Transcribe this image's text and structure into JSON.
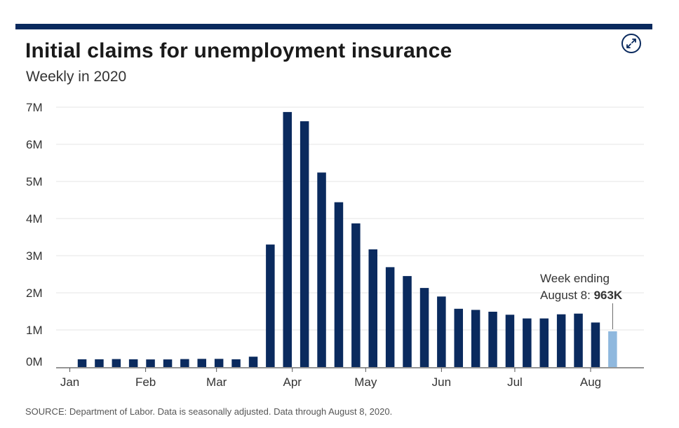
{
  "header": {
    "title": "Initial claims for unemployment insurance",
    "subtitle": "Weekly in 2020",
    "expand_icon": "expand-arrows-icon"
  },
  "colors": {
    "bar": "#0a2a5e",
    "highlight_bar": "#8fb8de",
    "gridline": "#e6e6e6",
    "axis": "#555555",
    "text": "#333333",
    "top_rule": "#0a2a5e"
  },
  "chart_data": {
    "type": "bar",
    "title": "Initial claims for unemployment insurance",
    "subtitle": "Weekly in 2020",
    "xlabel": "",
    "ylabel": "",
    "ylim": [
      0,
      7000000
    ],
    "yticks": [
      {
        "value": 0,
        "label": "0M"
      },
      {
        "value": 1000000,
        "label": "1M"
      },
      {
        "value": 2000000,
        "label": "2M"
      },
      {
        "value": 3000000,
        "label": "3M"
      },
      {
        "value": 4000000,
        "label": "4M"
      },
      {
        "value": 5000000,
        "label": "5M"
      },
      {
        "value": 6000000,
        "label": "6M"
      },
      {
        "value": 7000000,
        "label": "7M"
      }
    ],
    "month_labels": [
      {
        "label": "Jan",
        "date": "2020-01-01"
      },
      {
        "label": "Feb",
        "date": "2020-02-01"
      },
      {
        "label": "Mar",
        "date": "2020-03-01"
      },
      {
        "label": "Apr",
        "date": "2020-04-01"
      },
      {
        "label": "May",
        "date": "2020-05-01"
      },
      {
        "label": "Jun",
        "date": "2020-06-01"
      },
      {
        "label": "Jul",
        "date": "2020-07-01"
      },
      {
        "label": "Aug",
        "date": "2020-08-01"
      }
    ],
    "grid": true,
    "series": [
      {
        "values": [
          {
            "week_ending": "2020-01-04",
            "value": 210000
          },
          {
            "week_ending": "2020-01-11",
            "value": 210000
          },
          {
            "week_ending": "2020-01-18",
            "value": 215000
          },
          {
            "week_ending": "2020-01-25",
            "value": 210000
          },
          {
            "week_ending": "2020-02-01",
            "value": 205000
          },
          {
            "week_ending": "2020-02-08",
            "value": 205000
          },
          {
            "week_ending": "2020-02-15",
            "value": 215000
          },
          {
            "week_ending": "2020-02-22",
            "value": 220000
          },
          {
            "week_ending": "2020-02-29",
            "value": 220000
          },
          {
            "week_ending": "2020-03-07",
            "value": 210000
          },
          {
            "week_ending": "2020-03-14",
            "value": 280000
          },
          {
            "week_ending": "2020-03-21",
            "value": 3300000
          },
          {
            "week_ending": "2020-03-28",
            "value": 6870000
          },
          {
            "week_ending": "2020-04-04",
            "value": 6620000
          },
          {
            "week_ending": "2020-04-11",
            "value": 5240000
          },
          {
            "week_ending": "2020-04-18",
            "value": 4440000
          },
          {
            "week_ending": "2020-04-25",
            "value": 3870000
          },
          {
            "week_ending": "2020-05-02",
            "value": 3170000
          },
          {
            "week_ending": "2020-05-09",
            "value": 2690000
          },
          {
            "week_ending": "2020-05-16",
            "value": 2450000
          },
          {
            "week_ending": "2020-05-23",
            "value": 2130000
          },
          {
            "week_ending": "2020-05-30",
            "value": 1900000
          },
          {
            "week_ending": "2020-06-06",
            "value": 1570000
          },
          {
            "week_ending": "2020-06-13",
            "value": 1540000
          },
          {
            "week_ending": "2020-06-20",
            "value": 1490000
          },
          {
            "week_ending": "2020-06-27",
            "value": 1410000
          },
          {
            "week_ending": "2020-07-04",
            "value": 1310000
          },
          {
            "week_ending": "2020-07-11",
            "value": 1310000
          },
          {
            "week_ending": "2020-07-18",
            "value": 1420000
          },
          {
            "week_ending": "2020-07-25",
            "value": 1440000
          },
          {
            "week_ending": "2020-08-01",
            "value": 1200000
          },
          {
            "week_ending": "2020-08-08",
            "value": 963000,
            "highlight": true
          }
        ]
      }
    ],
    "annotation": {
      "line1": "Week ending",
      "line2_prefix": "August 8: ",
      "line2_value": "963K",
      "week_ending": "2020-08-08"
    }
  },
  "footer": {
    "source": "SOURCE: Department of Labor. Data is seasonally adjusted. Data through August 8, 2020."
  }
}
